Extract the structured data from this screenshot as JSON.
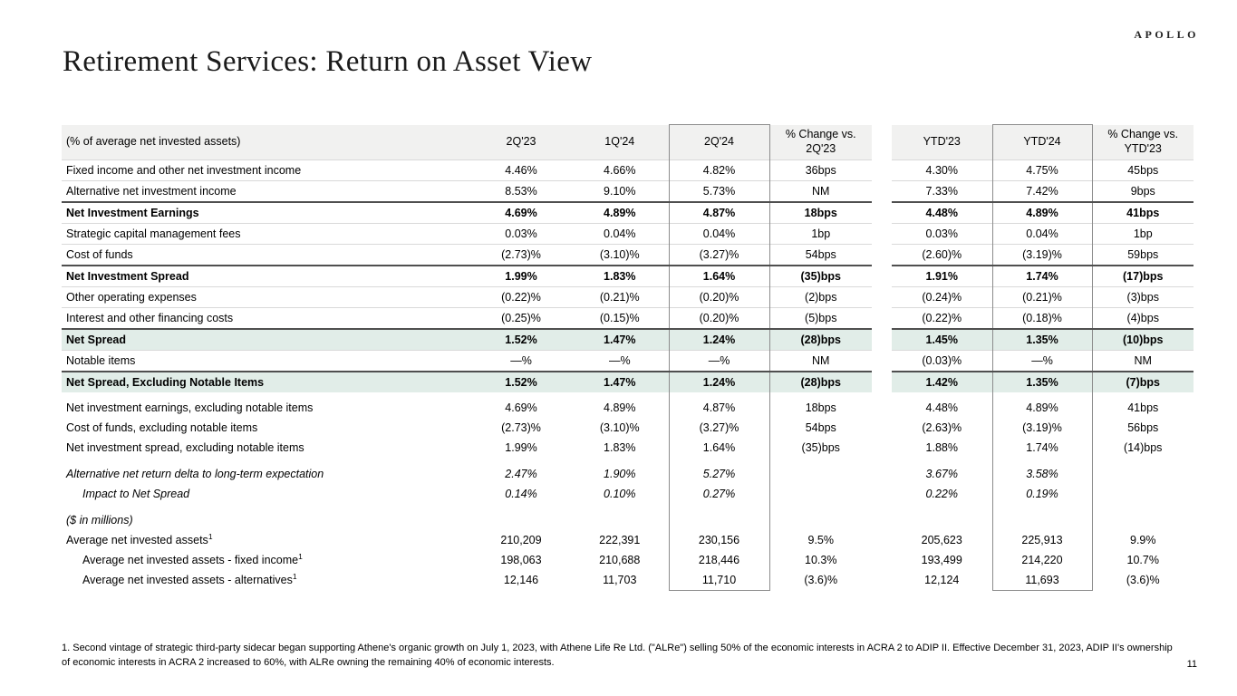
{
  "slide": {
    "title": "Retirement Services: Return on Asset View",
    "logo_text": "APOLLO",
    "page_number": "11",
    "footnote": "1. Second vintage of strategic third-party sidecar began supporting Athene's organic growth on July 1, 2023, with Athene Life Re Ltd. (\"ALRe\") selling 50% of the economic interests in ACRA 2 to ADIP II. Effective December 31, 2023, ADIP II's ownership of economic interests in ACRA 2 increased to 60%, with ALRe owning the remaining 40% of economic interests."
  },
  "colors": {
    "header_bg": "#f1f1f0",
    "highlight_row_bg": "#e1ede8",
    "thin_rule": "#d9d9d9",
    "thick_rule": "#4f4f4f",
    "box_border": "#8c8c8c"
  },
  "table": {
    "header": {
      "label": "(% of average net invested assets)",
      "columns": [
        "2Q'23",
        "1Q'24",
        "2Q'24",
        "% Change vs.\n2Q'23",
        "YTD'23",
        "YTD'24",
        "% Change vs.\nYTD'23"
      ]
    },
    "boxed_column_indexes": [
      2,
      5
    ],
    "rows": [
      {
        "label": "Fixed income and other net investment income",
        "rule": "thin",
        "values": [
          "4.46%",
          "4.66%",
          "4.82%",
          "36bps",
          "4.30%",
          "4.75%",
          "45bps"
        ]
      },
      {
        "label": "Alternative net investment income",
        "rule": "thin",
        "values": [
          "8.53%",
          "9.10%",
          "5.73%",
          "NM",
          "7.33%",
          "7.42%",
          "9bps"
        ]
      },
      {
        "label": "Net Investment Earnings",
        "bold": true,
        "rule": "thick",
        "values": [
          "4.69%",
          "4.89%",
          "4.87%",
          "18bps",
          "4.48%",
          "4.89%",
          "41bps"
        ]
      },
      {
        "label": "Strategic capital management fees",
        "rule": "thin",
        "values": [
          "0.03%",
          "0.04%",
          "0.04%",
          "1bp",
          "0.03%",
          "0.04%",
          "1bp"
        ]
      },
      {
        "label": "Cost of funds",
        "rule": "thin",
        "values": [
          "(2.73)%",
          "(3.10)%",
          "(3.27)%",
          "54bps",
          "(2.60)%",
          "(3.19)%",
          "59bps"
        ]
      },
      {
        "label": "Net Investment Spread",
        "bold": true,
        "rule": "thick",
        "values": [
          "1.99%",
          "1.83%",
          "1.64%",
          "(35)bps",
          "1.91%",
          "1.74%",
          "(17)bps"
        ]
      },
      {
        "label": "Other operating expenses",
        "rule": "thin",
        "values": [
          "(0.22)%",
          "(0.21)%",
          "(0.20)%",
          "(2)bps",
          "(0.24)%",
          "(0.21)%",
          "(3)bps"
        ]
      },
      {
        "label": "Interest and other financing costs",
        "rule": "thin",
        "values": [
          "(0.25)%",
          "(0.15)%",
          "(0.20)%",
          "(5)bps",
          "(0.22)%",
          "(0.18)%",
          "(4)bps"
        ]
      },
      {
        "label": "Net Spread",
        "bold": true,
        "green": true,
        "rule": "thick",
        "values": [
          "1.52%",
          "1.47%",
          "1.24%",
          "(28)bps",
          "1.45%",
          "1.35%",
          "(10)bps"
        ]
      },
      {
        "label": "Notable items",
        "rule": "thin",
        "values": [
          "—%",
          "—%",
          "—%",
          "NM",
          "(0.03)%",
          "—%",
          "NM"
        ]
      },
      {
        "label": "Net Spread, Excluding Notable Items",
        "bold": true,
        "green": true,
        "rule": "thick",
        "values": [
          "1.52%",
          "1.47%",
          "1.24%",
          "(28)bps",
          "1.42%",
          "1.35%",
          "(7)bps"
        ]
      },
      {
        "spacer": true,
        "height": 6
      },
      {
        "label": "Net investment earnings, excluding notable items",
        "values": [
          "4.69%",
          "4.89%",
          "4.87%",
          "18bps",
          "4.48%",
          "4.89%",
          "41bps"
        ]
      },
      {
        "label": "Cost of funds, excluding notable items",
        "values": [
          "(2.73)%",
          "(3.10)%",
          "(3.27)%",
          "54bps",
          "(2.63)%",
          "(3.19)%",
          "56bps"
        ]
      },
      {
        "label": "Net investment spread, excluding notable items",
        "values": [
          "1.99%",
          "1.83%",
          "1.64%",
          "(35)bps",
          "1.88%",
          "1.74%",
          "(14)bps"
        ]
      },
      {
        "spacer": true,
        "height": 7
      },
      {
        "label": "Alternative net return delta to long-term expectation",
        "italic": true,
        "values": [
          "2.47%",
          "1.90%",
          "5.27%",
          "",
          "3.67%",
          "3.58%",
          ""
        ]
      },
      {
        "label": "Impact to Net Spread",
        "italic": true,
        "indent": 1,
        "values": [
          "0.14%",
          "0.10%",
          "0.27%",
          "",
          "0.22%",
          "0.19%",
          ""
        ]
      },
      {
        "spacer": true,
        "height": 7
      },
      {
        "label": "($ in millions)",
        "italic": true,
        "values": [
          "",
          "",
          "",
          "",
          "",
          "",
          ""
        ]
      },
      {
        "label": "Average net invested assets",
        "sup": "1",
        "values": [
          "210,209",
          "222,391",
          "230,156",
          "9.5%",
          "205,623",
          "225,913",
          "9.9%"
        ]
      },
      {
        "label": "Average net invested assets - fixed income",
        "sup": "1",
        "indent": 1,
        "values": [
          "198,063",
          "210,688",
          "218,446",
          "10.3%",
          "193,499",
          "214,220",
          "10.7%"
        ]
      },
      {
        "label": "Average net invested assets - alternatives",
        "sup": "1",
        "indent": 1,
        "last": true,
        "values": [
          "12,146",
          "11,703",
          "11,710",
          "(3.6)%",
          "12,124",
          "11,693",
          "(3.6)%"
        ]
      }
    ]
  }
}
